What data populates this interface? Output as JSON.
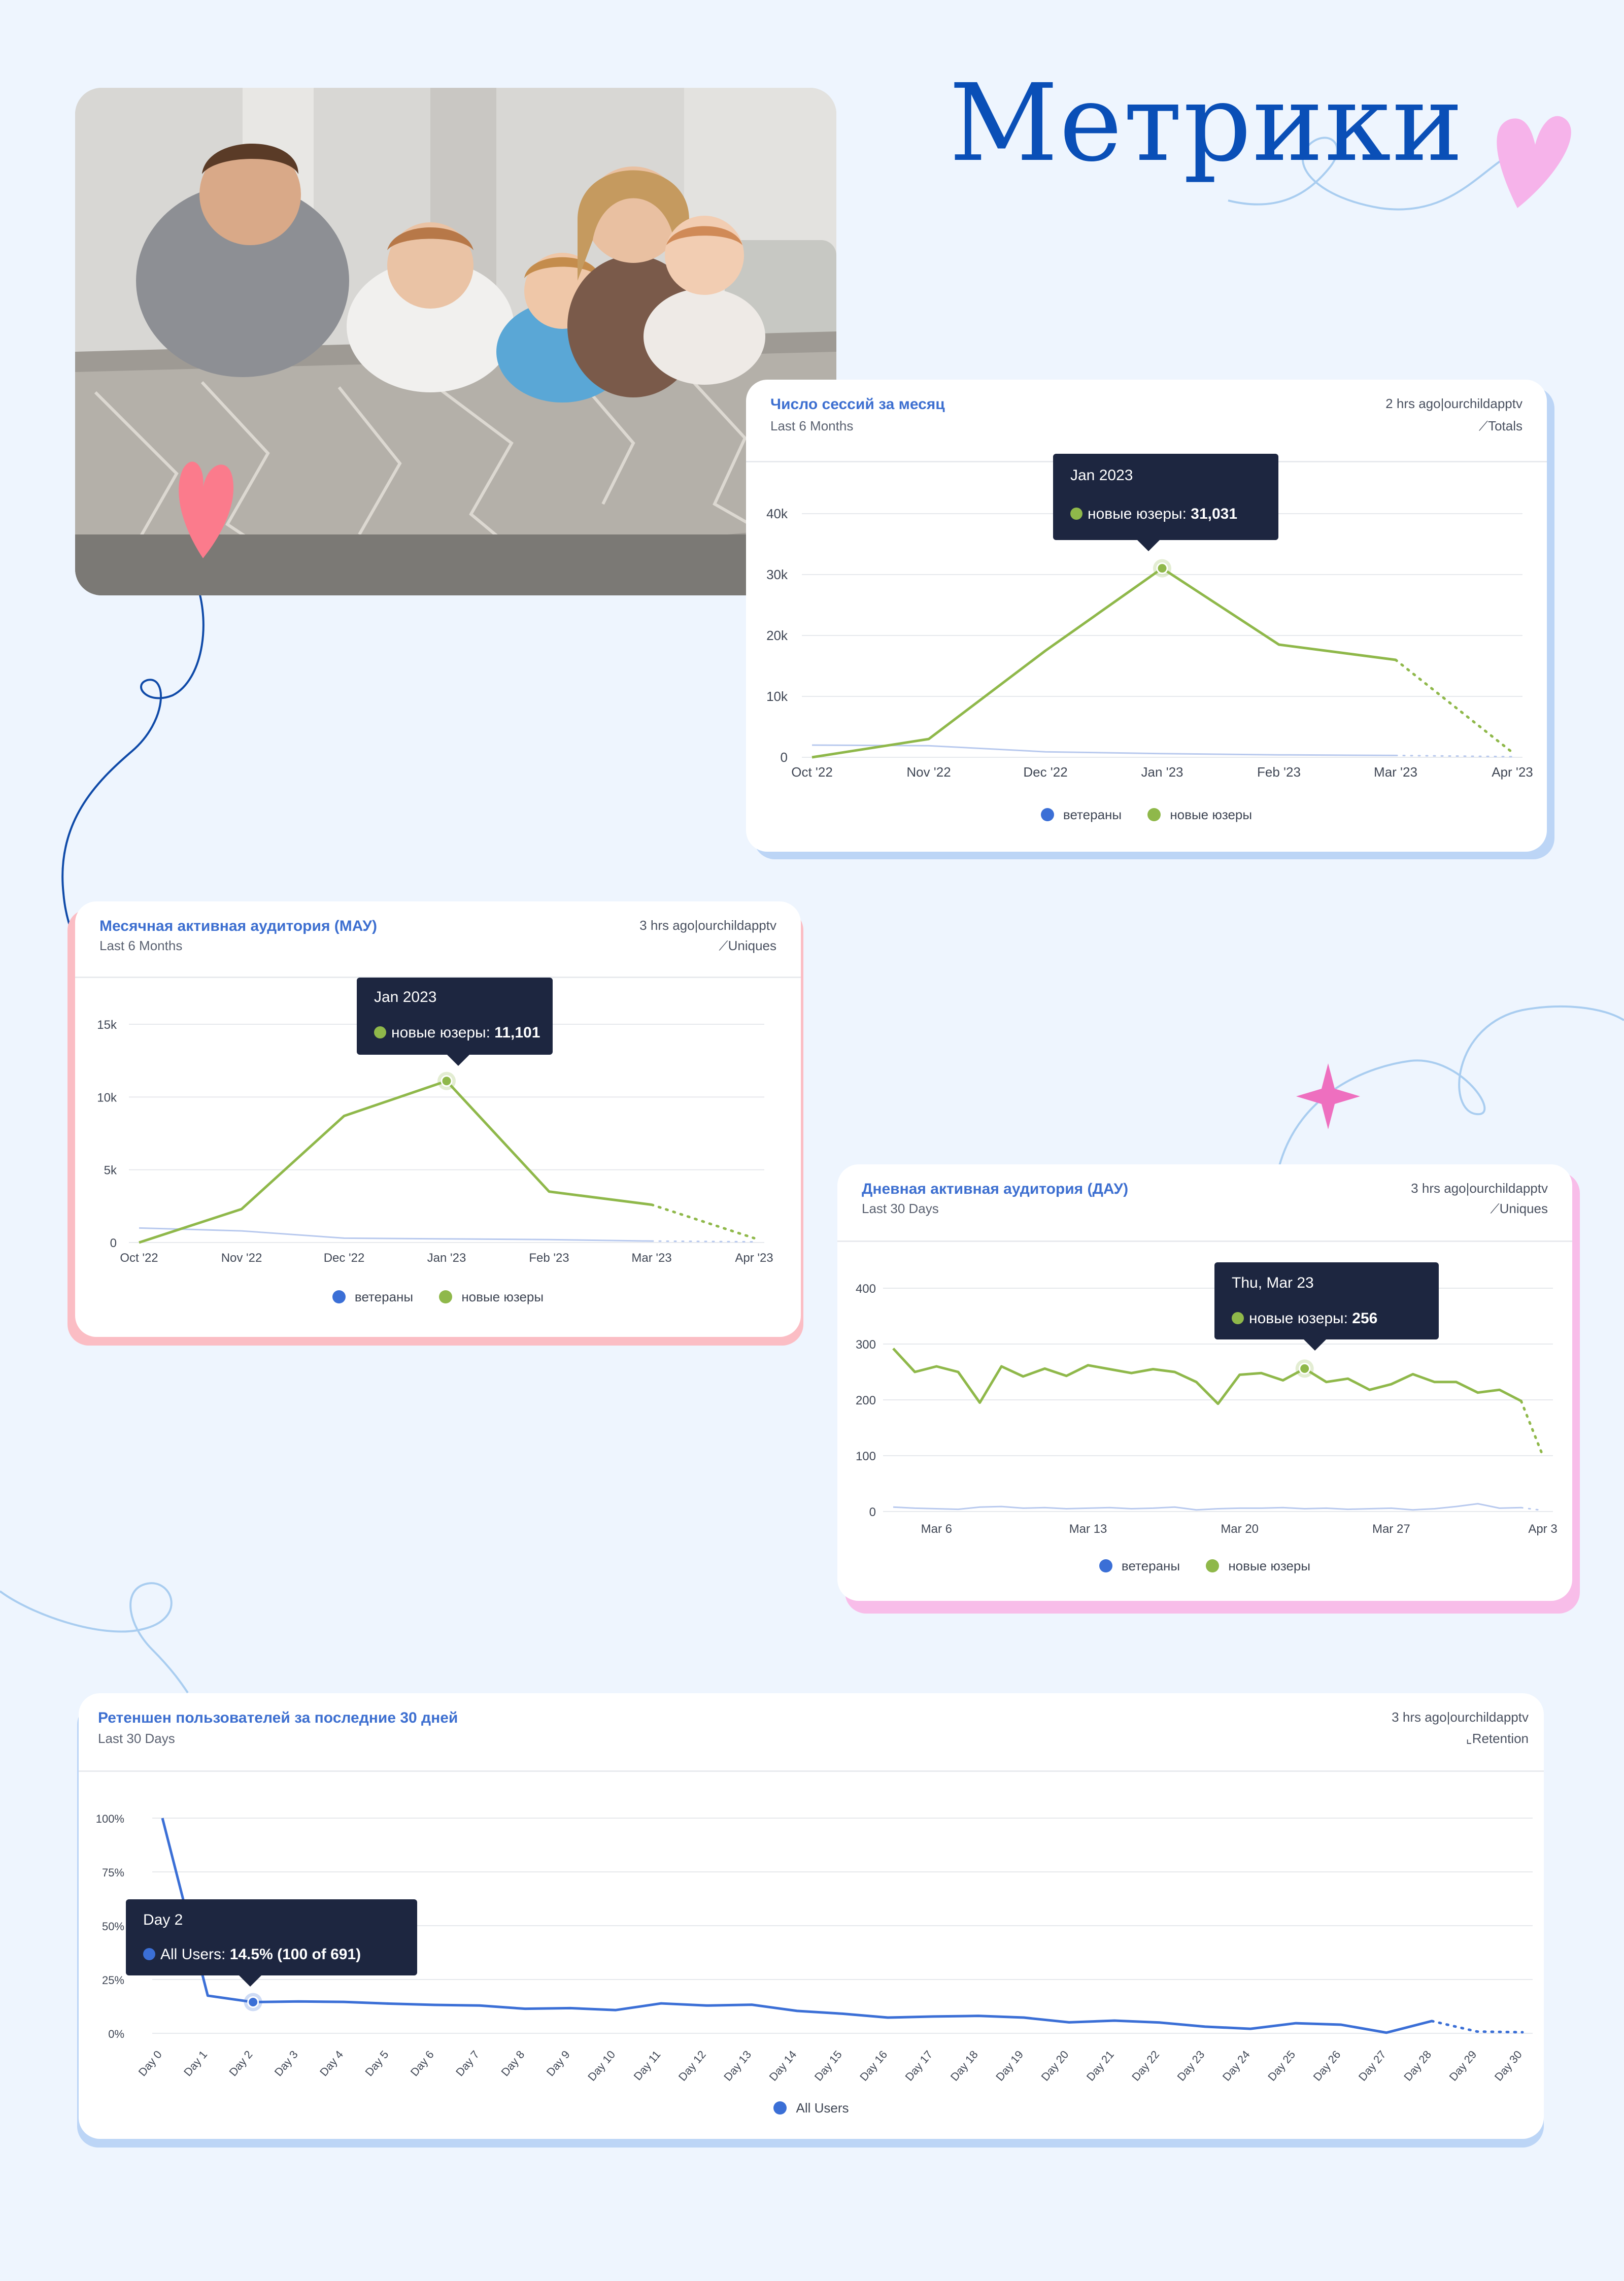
{
  "page": {
    "title": "Метрики",
    "background": "#eef5fe",
    "accent": "#0a4fb7",
    "photo_alt": "Семья лежит на кровати"
  },
  "colors": {
    "veterans": "#3b6fd6",
    "veterans_line": "#b8c9ee",
    "new_users": "#8fb84a",
    "retention": "#3b6fd6",
    "tooltip_bg": "#1d2640"
  },
  "cards": {
    "sessions": {
      "title": "Число сессий за месяц",
      "subtitle": "Last 6 Months",
      "meta": "2 hrs ago|ourchildapptv",
      "mode": "Totals",
      "mode_icon": "line-chart-icon",
      "tooltip": {
        "header": "Jan 2023",
        "label": "новые юзеры: ",
        "value": "31,031"
      },
      "legend": [
        "ветераны",
        "новые юзеры"
      ]
    },
    "mau": {
      "title": "Месячная активная аудитория (МАУ)",
      "subtitle": "Last 6 Months",
      "meta": "3 hrs ago|ourchildapptv",
      "mode": "Uniques",
      "mode_icon": "line-chart-icon",
      "tooltip": {
        "header": "Jan 2023",
        "label": "новые юзеры: ",
        "value": "11,101"
      },
      "legend": [
        "ветераны",
        "новые юзеры"
      ]
    },
    "dau": {
      "title": "Дневная активная аудитория (ДАУ)",
      "subtitle": "Last 30 Days",
      "meta": "3 hrs ago|ourchildapptv",
      "mode": "Uniques",
      "mode_icon": "line-chart-icon",
      "tooltip": {
        "header": "Thu, Mar 23",
        "label": "новые юзеры: ",
        "value": "256"
      },
      "legend": [
        "ветераны",
        "новые юзеры"
      ]
    },
    "retention": {
      "title": "Ретеншен пользователей за последние 30 дней",
      "subtitle": "Last 30 Days",
      "meta": "3 hrs ago|ourchildapptv",
      "mode": "Retention",
      "mode_icon": "retention-icon",
      "tooltip": {
        "header": "Day 2",
        "label": "All Users: ",
        "value": "14.5% (100 of 691)"
      },
      "legend": [
        "All Users"
      ]
    }
  },
  "chart_data": [
    {
      "id": "sessions",
      "type": "line",
      "title": "Число сессий за месяц",
      "categories": [
        "Oct '22",
        "Nov '22",
        "Dec '22",
        "Jan '23",
        "Feb '23",
        "Mar '23",
        "Apr '23"
      ],
      "yticks": [
        "0",
        "10k",
        "20k",
        "30k",
        "40k"
      ],
      "ylim": [
        0,
        40000
      ],
      "grid": true,
      "legend_position": "bottom",
      "incomplete_last_point": true,
      "series": [
        {
          "name": "ветераны",
          "values": [
            2000,
            1900,
            900,
            600,
            400,
            300,
            100
          ]
        },
        {
          "name": "новые юзеры",
          "values": [
            0,
            3000,
            17500,
            31031,
            18500,
            16000,
            800
          ]
        }
      ],
      "highlight": {
        "series": 1,
        "index": 3
      }
    },
    {
      "id": "mau",
      "type": "line",
      "title": "Месячная активная аудитория (МАУ)",
      "categories": [
        "Oct '22",
        "Nov '22",
        "Dec '22",
        "Jan '23",
        "Feb '23",
        "Mar '23",
        "Apr '23"
      ],
      "yticks": [
        "0",
        "5k",
        "10k",
        "15k"
      ],
      "ylim": [
        0,
        15000
      ],
      "grid": true,
      "legend_position": "bottom",
      "incomplete_last_point": true,
      "series": [
        {
          "name": "ветераны",
          "values": [
            1000,
            800,
            300,
            250,
            200,
            100,
            50
          ]
        },
        {
          "name": "новые юзеры",
          "values": [
            0,
            2300,
            8700,
            11101,
            3500,
            2600,
            300
          ]
        }
      ],
      "highlight": {
        "series": 1,
        "index": 3
      }
    },
    {
      "id": "dau",
      "type": "line",
      "title": "Дневная активная аудитория (ДАУ)",
      "x": [
        "Mar 4",
        "Mar 5",
        "Mar 6",
        "Mar 7",
        "Mar 8",
        "Mar 9",
        "Mar 10",
        "Mar 11",
        "Mar 12",
        "Mar 13",
        "Mar 14",
        "Mar 15",
        "Mar 16",
        "Mar 17",
        "Mar 18",
        "Mar 19",
        "Mar 20",
        "Mar 21",
        "Mar 22",
        "Mar 23",
        "Mar 24",
        "Mar 25",
        "Mar 26",
        "Mar 27",
        "Mar 28",
        "Mar 29",
        "Mar 30",
        "Mar 31",
        "Apr 1",
        "Apr 2",
        "Apr 3"
      ],
      "xticks": [
        "Mar 6",
        "Mar 13",
        "Mar 20",
        "Mar 27",
        "Apr 3"
      ],
      "yticks": [
        "0",
        "100",
        "200",
        "300",
        "400"
      ],
      "ylim": [
        0,
        400
      ],
      "grid": true,
      "legend_position": "bottom",
      "incomplete_last_point": true,
      "series": [
        {
          "name": "ветераны",
          "values": [
            8,
            6,
            5,
            4,
            8,
            9,
            6,
            7,
            5,
            6,
            7,
            5,
            6,
            8,
            3,
            5,
            6,
            6,
            7,
            5,
            6,
            4,
            5,
            6,
            3,
            5,
            9,
            14,
            6,
            7,
            2
          ]
        },
        {
          "name": "новые юзеры",
          "values": [
            292,
            250,
            260,
            250,
            195,
            260,
            242,
            256,
            243,
            262,
            255,
            248,
            255,
            250,
            232,
            193,
            245,
            248,
            235,
            256,
            232,
            238,
            218,
            228,
            246,
            232,
            232,
            213,
            218,
            198,
            100
          ]
        }
      ],
      "highlight": {
        "series": 1,
        "index": 19
      }
    },
    {
      "id": "retention",
      "type": "line",
      "title": "Ретеншен пользователей за последние 30 дней",
      "categories": [
        "Day 0",
        "Day 1",
        "Day 2",
        "Day 3",
        "Day 4",
        "Day 5",
        "Day 6",
        "Day 7",
        "Day 8",
        "Day 9",
        "Day 10",
        "Day 11",
        "Day 12",
        "Day 13",
        "Day 14",
        "Day 15",
        "Day 16",
        "Day 17",
        "Day 18",
        "Day 19",
        "Day 20",
        "Day 21",
        "Day 22",
        "Day 23",
        "Day 24",
        "Day 25",
        "Day 26",
        "Day 27",
        "Day 28",
        "Day 29",
        "Day 30"
      ],
      "yticks": [
        "0%",
        "25%",
        "50%",
        "75%",
        "100%"
      ],
      "ylim": [
        0,
        100
      ],
      "grid": true,
      "legend_position": "bottom",
      "incomplete_from_index": 28,
      "series": [
        {
          "name": "All Users",
          "values": [
            100,
            17.5,
            14.5,
            14.8,
            14.6,
            13.8,
            13.2,
            12.9,
            11.4,
            11.7,
            10.8,
            13.9,
            12.9,
            13.3,
            10.4,
            9.1,
            7.3,
            7.8,
            8.1,
            7.3,
            5.1,
            5.9,
            5.0,
            3.1,
            2.1,
            4.7,
            4.0,
            0.3,
            5.7,
            0.8,
            0.5
          ]
        }
      ],
      "highlight": {
        "series": 0,
        "index": 2
      }
    }
  ]
}
